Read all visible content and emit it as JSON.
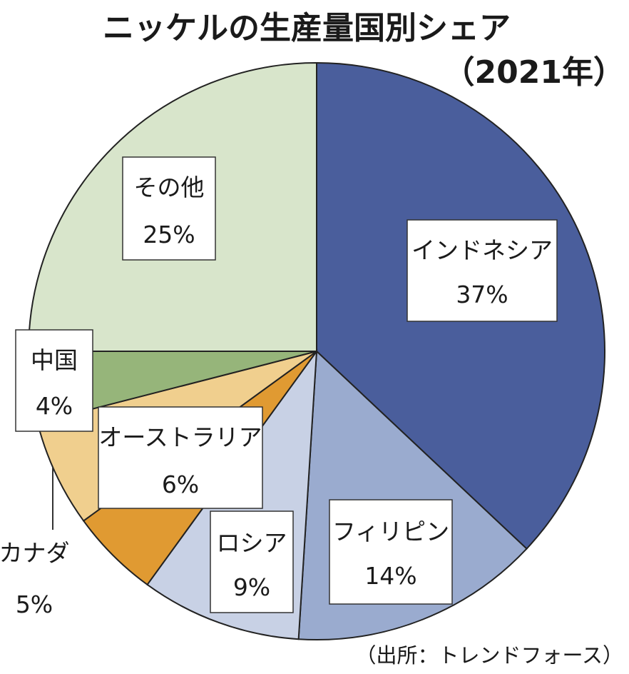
{
  "chart_data": {
    "type": "pie",
    "title": "ニッケルの生産量国別シェア",
    "subtitle": "（2021年）",
    "source": "（出所：トレンドフォース）",
    "unit": "%",
    "slices": [
      {
        "label": "インドネシア",
        "value": 37,
        "value_label": "37%",
        "color": "#4a5e9c"
      },
      {
        "label": "フィリピン",
        "value": 14,
        "value_label": "14%",
        "color": "#9aabcf"
      },
      {
        "label": "ロシア",
        "value": 9,
        "value_label": "9%",
        "color": "#c8d1e5"
      },
      {
        "label": "カナダ",
        "value": 5,
        "value_label": "5%",
        "color": "#e09a32"
      },
      {
        "label": "オーストラリア",
        "value": 6,
        "value_label": "6%",
        "color": "#f0cf8e"
      },
      {
        "label": "中国",
        "value": 4,
        "value_label": "4%",
        "color": "#96b57a"
      },
      {
        "label": "その他",
        "value": 25,
        "value_label": "25%",
        "color": "#d8e5cb"
      }
    ]
  }
}
